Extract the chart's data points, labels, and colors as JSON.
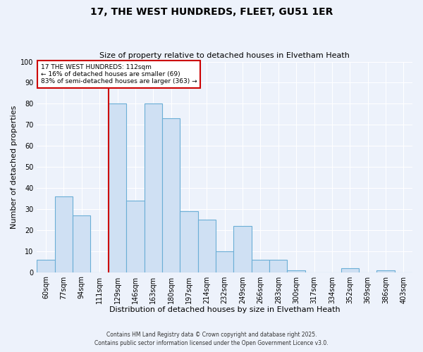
{
  "title": "17, THE WEST HUNDREDS, FLEET, GU51 1ER",
  "subtitle": "Size of property relative to detached houses in Elvetham Heath",
  "xlabel": "Distribution of detached houses by size in Elvetham Heath",
  "ylabel": "Number of detached properties",
  "footer_line1": "Contains HM Land Registry data © Crown copyright and database right 2025.",
  "footer_line2": "Contains public sector information licensed under the Open Government Licence v3.0.",
  "bin_labels": [
    "60sqm",
    "77sqm",
    "94sqm",
    "111sqm",
    "129sqm",
    "146sqm",
    "163sqm",
    "180sqm",
    "197sqm",
    "214sqm",
    "232sqm",
    "249sqm",
    "266sqm",
    "283sqm",
    "300sqm",
    "317sqm",
    "334sqm",
    "352sqm",
    "369sqm",
    "386sqm",
    "403sqm"
  ],
  "bar_values": [
    6,
    36,
    27,
    0,
    80,
    34,
    80,
    73,
    29,
    25,
    10,
    22,
    6,
    6,
    1,
    0,
    0,
    2,
    0,
    1,
    0
  ],
  "bar_color": "#cfe0f3",
  "bar_edge_color": "#6baed6",
  "annotation_title": "17 THE WEST HUNDREDS: 112sqm",
  "annotation_line1": "← 16% of detached houses are smaller (69)",
  "annotation_line2": "83% of semi-detached houses are larger (363) →",
  "annotation_box_color": "#ffffff",
  "annotation_box_edge": "#cc0000",
  "highlight_line_color": "#cc0000",
  "ylim": [
    0,
    100
  ],
  "yticks": [
    0,
    10,
    20,
    30,
    40,
    50,
    60,
    70,
    80,
    90,
    100
  ],
  "background_color": "#edf2fb",
  "grid_color": "#ffffff"
}
